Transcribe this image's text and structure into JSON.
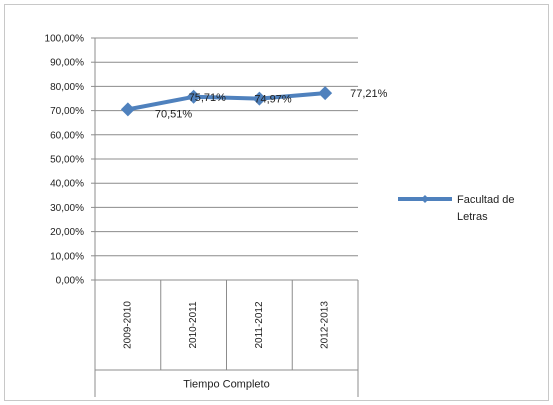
{
  "chart_data": {
    "type": "line",
    "categories": [
      "2009-2010",
      "2010-2011",
      "2011-2012",
      "2012-2013"
    ],
    "group_label": "Tiempo Completo",
    "series": [
      {
        "name": "Facultad de Letras",
        "values": [
          70.51,
          75.71,
          74.97,
          77.21
        ],
        "labels": [
          "70,51%",
          "75,71%",
          "74,97%",
          "77,21%"
        ],
        "color": "#4f81bd"
      }
    ],
    "y_ticks": [
      "0,00%",
      "10,00%",
      "20,00%",
      "30,00%",
      "40,00%",
      "50,00%",
      "60,00%",
      "70,00%",
      "80,00%",
      "90,00%",
      "100,00%"
    ],
    "ylim": [
      0,
      100
    ],
    "grid": true,
    "legend_position": "right"
  }
}
